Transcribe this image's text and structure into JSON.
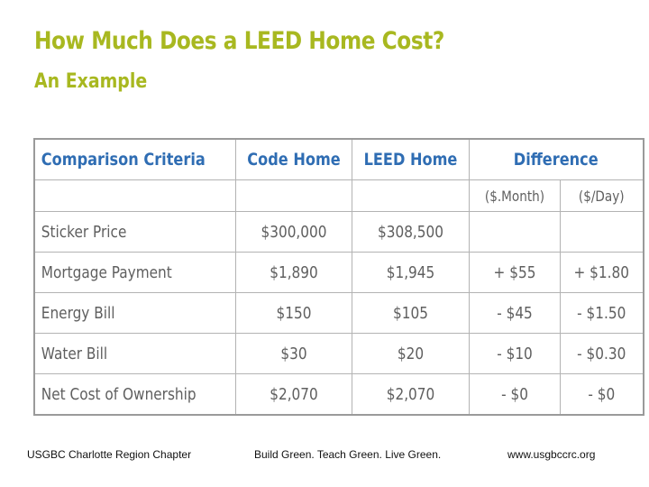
{
  "title": "How Much Does a LEED Home Cost?",
  "subtitle": "An Example",
  "table": {
    "headers": [
      "Comparison Criteria",
      "Code Home",
      "LEED Home",
      "Difference"
    ],
    "subheaders": [
      "($.Month)",
      "($/Day)"
    ],
    "rows": [
      {
        "criteria": "Sticker Price",
        "code": "$300,000",
        "leed": "$308,500",
        "month": "",
        "day": ""
      },
      {
        "criteria": "Mortgage Payment",
        "code": "$1,890",
        "leed": "$1,945",
        "month": "+ $55",
        "day": "+ $1.80"
      },
      {
        "criteria": "Energy Bill",
        "code": "$150",
        "leed": "$105",
        "month": "- $45",
        "day": "- $1.50"
      },
      {
        "criteria": "Water Bill",
        "code": "$30",
        "leed": "$20",
        "month": "- $10",
        "day": "- $0.30"
      },
      {
        "criteria": "Net Cost of Ownership",
        "code": "$2,070",
        "leed": "$2,070",
        "month": "- $0",
        "day": "- $0"
      }
    ]
  },
  "footer": {
    "left": "USGBC Charlotte Region Chapter",
    "center": "Build Green. Teach Green. Live Green.",
    "right": "www.usgbccrc.org"
  },
  "colors": {
    "title": "#a8b820",
    "header": "#2f6db3",
    "text": "#5f5f5f",
    "border": "#b3b3b3"
  }
}
